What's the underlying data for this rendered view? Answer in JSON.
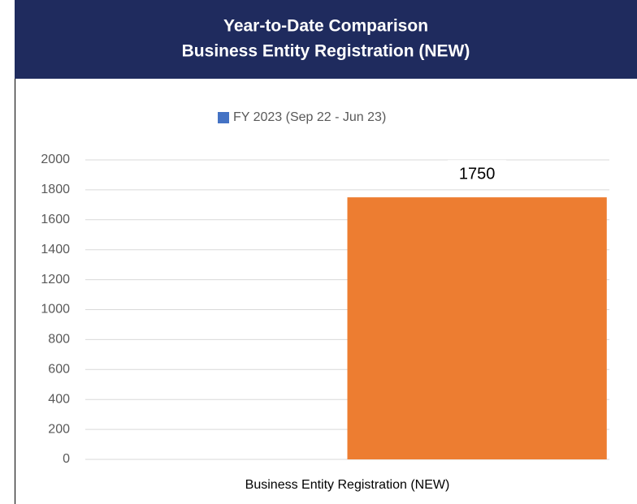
{
  "chart_data": {
    "type": "bar",
    "title": "Year-to-Date Comparison",
    "subtitle": "Business Entity Registration (NEW)",
    "categories": [
      "Business Entity Registration (NEW)"
    ],
    "series": [
      {
        "name": "FY 2023 (Sep 22 - Jun 23)",
        "color": "#4472c4",
        "values": [
          null
        ]
      },
      {
        "color": "#ed7d31",
        "values": [
          1750
        ]
      }
    ],
    "ylim": [
      0,
      2000
    ],
    "yticks": [
      0,
      200,
      400,
      600,
      800,
      1000,
      1200,
      1400,
      1600,
      1800,
      2000
    ],
    "grid": true,
    "legend": "top"
  }
}
